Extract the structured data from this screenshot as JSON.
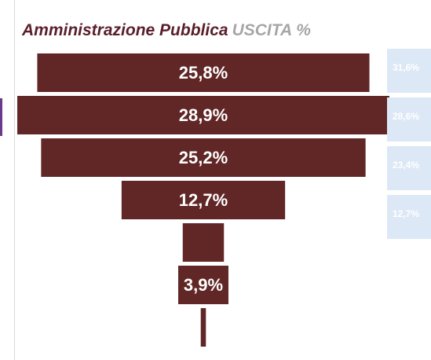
{
  "chart_data": {
    "type": "funnel",
    "title": "Amministrazione Pubblica",
    "subtitle": "USCITA %",
    "values": [
      25.8,
      28.9,
      25.2,
      12.7,
      3.2,
      3.9,
      0.4
    ],
    "value_labels": [
      "25,8%",
      "28,9%",
      "25,2%",
      "12,7%",
      null,
      "3,9%",
      null
    ],
    "color": "#612626",
    "comparison": {
      "values": [
        31.6,
        28.6,
        23.4,
        12.7
      ],
      "value_labels": [
        "31,6%",
        "28,6%",
        "23,4%",
        "12,7%"
      ],
      "color": "#dde8f6"
    }
  }
}
